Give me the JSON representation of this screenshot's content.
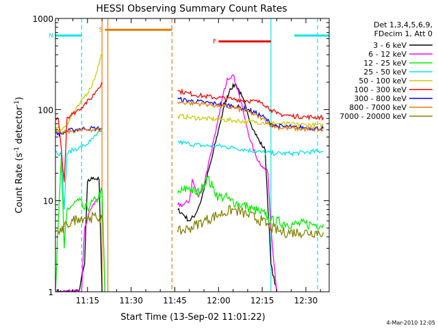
{
  "chart_data": {
    "type": "line",
    "title": "HESSI Observing Summary Count Rates",
    "xlabel": "Start Time (13-Sep-02 11:01:22)",
    "ylabel_main": "Count Rate (s",
    "ylabel_sup1": "-1",
    "ylabel_mid": " detector",
    "ylabel_sup2": "-1",
    "ylabel_end": ")",
    "y_scale": "log",
    "ylim": [
      1,
      1000
    ],
    "xlim": [
      "11:04",
      "12:38"
    ],
    "x_ticks": [
      "11:15",
      "11:30",
      "11:45",
      "12:00",
      "12:15",
      "12:30"
    ],
    "y_ticks": [
      "1",
      "10",
      "100",
      "1000"
    ],
    "legend_header": [
      "Det 1,3,4,5,6,9,",
      "FDecim 1, Att 0"
    ],
    "legend_position": "right",
    "timestamp": "4-Mar-2010 12:05",
    "flags": [
      {
        "label": "N",
        "color": "#00e5e5",
        "y": 650,
        "segments": [
          [
            "11:04",
            "11:13"
          ],
          [
            "12:26",
            "12:38"
          ]
        ]
      },
      {
        "label": "S",
        "color": "#e87a00",
        "y": 750,
        "segments": [
          [
            "11:21",
            "11:44"
          ]
        ]
      },
      {
        "label": "F",
        "color": "#ee0000",
        "y": 560,
        "segments": [
          [
            "12:00",
            "12:18"
          ]
        ]
      }
    ],
    "boundaries": [
      {
        "time": "11:13",
        "color": "#00e5e5",
        "style": "dashed"
      },
      {
        "time": "11:20",
        "color": "#e87a00",
        "style": "solid"
      },
      {
        "time": "11:22",
        "color": "#e87a00",
        "style": "solid"
      },
      {
        "time": "11:44",
        "color": "#e87a00",
        "style": "dashed"
      },
      {
        "time": "12:18",
        "color": "#00e5e5",
        "style": "solid"
      },
      {
        "time": "12:34",
        "color": "#00e5e5",
        "style": "dashed"
      }
    ],
    "series": [
      {
        "name": "3 - 6 keV",
        "color": "#000000",
        "points": [
          [
            "11:04",
            1
          ],
          [
            "11:12",
            1
          ],
          [
            "11:14",
            2
          ],
          [
            "11:15",
            16
          ],
          [
            "11:17",
            18
          ],
          [
            "11:19",
            17
          ],
          [
            "11:20",
            1
          ],
          [
            "11:46",
            8
          ],
          [
            "11:48",
            7
          ],
          [
            "11:50",
            6
          ],
          [
            "11:52",
            7
          ],
          [
            "11:54",
            10
          ],
          [
            "11:56",
            18
          ],
          [
            "11:58",
            32
          ],
          [
            "12:00",
            60
          ],
          [
            "12:02",
            110
          ],
          [
            "12:04",
            170
          ],
          [
            "12:06",
            190
          ],
          [
            "12:08",
            140
          ],
          [
            "12:10",
            90
          ],
          [
            "12:12",
            60
          ],
          [
            "12:14",
            45
          ],
          [
            "12:16",
            36
          ],
          [
            "12:18",
            2
          ],
          [
            "12:20",
            1
          ],
          [
            "12:38",
            1
          ]
        ]
      },
      {
        "name": "6 - 12 keV",
        "color": "#ff00ff",
        "points": [
          [
            "11:04",
            1
          ],
          [
            "11:13",
            1
          ],
          [
            "11:14",
            5
          ],
          [
            "11:16",
            8
          ],
          [
            "11:18",
            10
          ],
          [
            "11:20",
            13
          ],
          [
            "11:21",
            1
          ],
          [
            "11:46",
            9
          ],
          [
            "11:48",
            9
          ],
          [
            "11:50",
            10
          ],
          [
            "11:51",
            17
          ],
          [
            "11:53",
            11
          ],
          [
            "11:55",
            15
          ],
          [
            "11:57",
            30
          ],
          [
            "11:59",
            55
          ],
          [
            "12:01",
            120
          ],
          [
            "12:03",
            220
          ],
          [
            "12:05",
            240
          ],
          [
            "12:07",
            150
          ],
          [
            "12:09",
            80
          ],
          [
            "12:11",
            45
          ],
          [
            "12:13",
            30
          ],
          [
            "12:15",
            24
          ],
          [
            "12:17",
            20
          ],
          [
            "12:18",
            5
          ],
          [
            "12:20",
            1
          ],
          [
            "12:38",
            1
          ]
        ]
      },
      {
        "name": "12 - 25 keV",
        "color": "#00ee00",
        "points": [
          [
            "11:04",
            1
          ],
          [
            "11:06",
            30
          ],
          [
            "11:07",
            3
          ],
          [
            "11:08",
            8
          ],
          [
            "11:10",
            9
          ],
          [
            "11:12",
            10
          ],
          [
            "11:14",
            8
          ],
          [
            "11:16",
            9
          ],
          [
            "11:18",
            10
          ],
          [
            "11:20",
            13
          ],
          [
            "11:21",
            1
          ],
          [
            "11:46",
            12
          ],
          [
            "11:48",
            13
          ],
          [
            "11:50",
            14
          ],
          [
            "11:52",
            12
          ],
          [
            "11:54",
            13
          ],
          [
            "11:56",
            18
          ],
          [
            "11:58",
            14
          ],
          [
            "12:00",
            11
          ],
          [
            "12:02",
            11
          ],
          [
            "12:04",
            10
          ],
          [
            "12:06",
            9.5
          ],
          [
            "12:08",
            9
          ],
          [
            "12:10",
            8.5
          ],
          [
            "12:12",
            8
          ],
          [
            "12:14",
            7.5
          ],
          [
            "12:16",
            7
          ],
          [
            "12:18",
            6
          ],
          [
            "12:26",
            5.5
          ],
          [
            "12:32",
            5.5
          ],
          [
            "12:36",
            5.5
          ]
        ]
      },
      {
        "name": "25 - 50 keV",
        "color": "#00e5e5",
        "points": [
          [
            "11:04",
            35
          ],
          [
            "11:06",
            32
          ],
          [
            "11:07",
            8
          ],
          [
            "11:08",
            33
          ],
          [
            "11:10",
            36
          ],
          [
            "11:12",
            38
          ],
          [
            "11:14",
            40
          ],
          [
            "11:16",
            45
          ],
          [
            "11:18",
            52
          ],
          [
            "11:20",
            60
          ],
          [
            "11:46",
            44
          ],
          [
            "11:50",
            42
          ],
          [
            "11:55",
            40
          ],
          [
            "12:00",
            40
          ],
          [
            "12:05",
            38
          ],
          [
            "12:10",
            36
          ],
          [
            "12:15",
            34
          ],
          [
            "12:20",
            33
          ],
          [
            "12:25",
            33
          ],
          [
            "12:30",
            34
          ],
          [
            "12:36",
            35
          ]
        ]
      },
      {
        "name": "50 - 100 keV",
        "color": "#cccc00",
        "points": [
          [
            "11:04",
            65
          ],
          [
            "11:06",
            60
          ],
          [
            "11:08",
            70
          ],
          [
            "11:10",
            90
          ],
          [
            "11:12",
            110
          ],
          [
            "11:14",
            140
          ],
          [
            "11:16",
            170
          ],
          [
            "11:18",
            250
          ],
          [
            "11:20",
            420
          ],
          [
            "11:46",
            85
          ],
          [
            "11:50",
            82
          ],
          [
            "11:55",
            80
          ],
          [
            "12:00",
            78
          ],
          [
            "12:05",
            76
          ],
          [
            "12:10",
            74
          ],
          [
            "12:15",
            72
          ],
          [
            "12:20",
            70
          ],
          [
            "12:25",
            69
          ],
          [
            "12:30",
            68
          ],
          [
            "12:36",
            67
          ]
        ]
      },
      {
        "name": "100 - 300 keV",
        "color": "#ee0000",
        "points": [
          [
            "11:04",
            78
          ],
          [
            "11:05",
            80
          ],
          [
            "11:06",
            38
          ],
          [
            "11:07",
            16
          ],
          [
            "11:08",
            82
          ],
          [
            "11:10",
            90
          ],
          [
            "11:12",
            100
          ],
          [
            "11:14",
            115
          ],
          [
            "11:16",
            130
          ],
          [
            "11:18",
            160
          ],
          [
            "11:20",
            200
          ],
          [
            "11:46",
            160
          ],
          [
            "11:50",
            150
          ],
          [
            "11:55",
            140
          ],
          [
            "12:00",
            135
          ],
          [
            "12:05",
            130
          ],
          [
            "12:10",
            125
          ],
          [
            "12:15",
            120
          ],
          [
            "12:18",
            100
          ],
          [
            "12:20",
            90
          ],
          [
            "12:25",
            85
          ],
          [
            "12:30",
            83
          ],
          [
            "12:36",
            82
          ]
        ]
      },
      {
        "name": "300 - 800 keV",
        "color": "#0000ee",
        "points": [
          [
            "11:04",
            55
          ],
          [
            "11:06",
            54
          ],
          [
            "11:08",
            58
          ],
          [
            "11:10",
            60
          ],
          [
            "11:12",
            61
          ],
          [
            "11:14",
            62
          ],
          [
            "11:16",
            62
          ],
          [
            "11:18",
            62
          ],
          [
            "11:20",
            62
          ],
          [
            "11:46",
            130
          ],
          [
            "11:50",
            125
          ],
          [
            "11:55",
            120
          ],
          [
            "12:00",
            115
          ],
          [
            "12:05",
            110
          ],
          [
            "12:10",
            100
          ],
          [
            "12:15",
            85
          ],
          [
            "12:18",
            70
          ],
          [
            "12:20",
            66
          ],
          [
            "12:25",
            64
          ],
          [
            "12:30",
            63
          ],
          [
            "12:36",
            62
          ]
        ]
      },
      {
        "name": "800 - 7000 keV",
        "color": "#e87a00",
        "points": [
          [
            "11:04",
            56
          ],
          [
            "11:06",
            55
          ],
          [
            "11:08",
            57
          ],
          [
            "11:10",
            58
          ],
          [
            "11:12",
            59
          ],
          [
            "11:14",
            60
          ],
          [
            "11:16",
            60
          ],
          [
            "11:18",
            60
          ],
          [
            "11:20",
            60
          ],
          [
            "11:46",
            120
          ],
          [
            "11:50",
            118
          ],
          [
            "11:55",
            115
          ],
          [
            "12:00",
            110
          ],
          [
            "12:05",
            105
          ],
          [
            "12:10",
            95
          ],
          [
            "12:15",
            80
          ],
          [
            "12:18",
            68
          ],
          [
            "12:20",
            64
          ],
          [
            "12:25",
            62
          ],
          [
            "12:30",
            61
          ],
          [
            "12:36",
            60
          ]
        ]
      },
      {
        "name": "7000 - 20000 keV",
        "color": "#808000",
        "points": [
          [
            "11:04",
            4.5
          ],
          [
            "11:06",
            4.5
          ],
          [
            "11:08",
            5.5
          ],
          [
            "11:10",
            6
          ],
          [
            "11:12",
            6.5
          ],
          [
            "11:14",
            6.5
          ],
          [
            "11:16",
            6.5
          ],
          [
            "11:18",
            6.5
          ],
          [
            "11:20",
            6.5
          ],
          [
            "11:46",
            4.5
          ],
          [
            "11:50",
            5
          ],
          [
            "11:55",
            6
          ],
          [
            "12:00",
            7
          ],
          [
            "12:05",
            8
          ],
          [
            "12:10",
            7
          ],
          [
            "12:15",
            6
          ],
          [
            "12:18",
            5
          ],
          [
            "12:22",
            4.5
          ],
          [
            "12:28",
            4.5
          ],
          [
            "12:36",
            4.5
          ]
        ]
      }
    ]
  }
}
